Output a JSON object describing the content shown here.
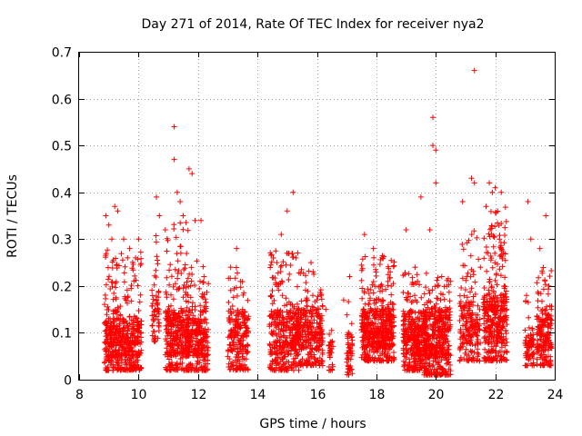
{
  "chart_data": {
    "type": "scatter",
    "title": "Day 271 of 2014, Rate Of TEC Index for receiver nya2",
    "xlabel": "GPS time / hours",
    "ylabel": "ROTI / TECUs",
    "xlim": [
      8,
      24
    ],
    "ylim": [
      0,
      0.7
    ],
    "xticks": [
      8,
      10,
      12,
      14,
      16,
      18,
      20,
      22,
      24
    ],
    "yticks": [
      0,
      0.1,
      0.2,
      0.3,
      0.4,
      0.5,
      0.6,
      0.7
    ],
    "ytick_labels": [
      "0",
      "0.1",
      "0.2",
      "0.3",
      "0.4",
      "0.5",
      "0.6",
      "0.7"
    ],
    "grid": true,
    "marker": "+",
    "color": "#ff0000",
    "series": [
      {
        "name": "ROTI",
        "points": [
          [
            8.9,
            0.35
          ],
          [
            9.0,
            0.33
          ],
          [
            9.1,
            0.3
          ],
          [
            9.2,
            0.37
          ],
          [
            9.3,
            0.36
          ],
          [
            9.5,
            0.3
          ],
          [
            9.7,
            0.28
          ],
          [
            9.9,
            0.26
          ],
          [
            10.0,
            0.3
          ],
          [
            10.6,
            0.39
          ],
          [
            10.7,
            0.35
          ],
          [
            10.9,
            0.32
          ],
          [
            11.2,
            0.54
          ],
          [
            11.2,
            0.47
          ],
          [
            11.3,
            0.4
          ],
          [
            11.4,
            0.38
          ],
          [
            11.5,
            0.35
          ],
          [
            11.7,
            0.45
          ],
          [
            11.8,
            0.44
          ],
          [
            11.9,
            0.34
          ],
          [
            12.1,
            0.34
          ],
          [
            12.2,
            0.22
          ],
          [
            13.1,
            0.24
          ],
          [
            13.3,
            0.28
          ],
          [
            13.5,
            0.15
          ],
          [
            14.5,
            0.19
          ],
          [
            14.8,
            0.31
          ],
          [
            15.0,
            0.36
          ],
          [
            15.2,
            0.4
          ],
          [
            15.3,
            0.26
          ],
          [
            15.8,
            0.25
          ],
          [
            16.0,
            0.17
          ],
          [
            16.3,
            0.15
          ],
          [
            16.9,
            0.17
          ],
          [
            17.1,
            0.22
          ],
          [
            17.6,
            0.31
          ],
          [
            17.9,
            0.28
          ],
          [
            18.2,
            0.26
          ],
          [
            18.5,
            0.2
          ],
          [
            19.0,
            0.32
          ],
          [
            19.3,
            0.24
          ],
          [
            19.5,
            0.39
          ],
          [
            19.8,
            0.32
          ],
          [
            19.9,
            0.56
          ],
          [
            19.9,
            0.5
          ],
          [
            20.0,
            0.49
          ],
          [
            20.0,
            0.42
          ],
          [
            20.2,
            0.22
          ],
          [
            20.5,
            0.21
          ],
          [
            20.9,
            0.38
          ],
          [
            21.2,
            0.43
          ],
          [
            21.3,
            0.42
          ],
          [
            21.3,
            0.66
          ],
          [
            21.5,
            0.24
          ],
          [
            21.8,
            0.42
          ],
          [
            21.9,
            0.4
          ],
          [
            22.0,
            0.41
          ],
          [
            22.2,
            0.4
          ],
          [
            22.3,
            0.2
          ],
          [
            23.1,
            0.38
          ],
          [
            23.2,
            0.3
          ],
          [
            23.5,
            0.28
          ],
          [
            23.7,
            0.35
          ],
          [
            23.8,
            0.2
          ]
        ],
        "bursts": [
          {
            "x0": 8.85,
            "x1": 10.1,
            "ymin": 0.02,
            "ymax": 0.28,
            "count": 520,
            "bias": 0.09
          },
          {
            "x0": 10.45,
            "x1": 10.7,
            "ymin": 0.08,
            "ymax": 0.32,
            "count": 60,
            "bias": 0.15
          },
          {
            "x0": 10.9,
            "x1": 11.7,
            "ymin": 0.02,
            "ymax": 0.34,
            "count": 340,
            "bias": 0.1
          },
          {
            "x0": 11.6,
            "x1": 12.35,
            "ymin": 0.02,
            "ymax": 0.26,
            "count": 300,
            "bias": 0.09
          },
          {
            "x0": 13.0,
            "x1": 13.7,
            "ymin": 0.02,
            "ymax": 0.24,
            "count": 220,
            "bias": 0.1
          },
          {
            "x0": 14.4,
            "x1": 15.4,
            "ymin": 0.02,
            "ymax": 0.28,
            "count": 360,
            "bias": 0.1
          },
          {
            "x0": 15.3,
            "x1": 16.2,
            "ymin": 0.03,
            "ymax": 0.24,
            "count": 300,
            "bias": 0.11
          },
          {
            "x0": 16.4,
            "x1": 16.55,
            "ymin": 0.02,
            "ymax": 0.13,
            "count": 30,
            "bias": 0.06
          },
          {
            "x0": 17.0,
            "x1": 17.2,
            "ymin": 0.01,
            "ymax": 0.17,
            "count": 50,
            "bias": 0.07
          },
          {
            "x0": 17.5,
            "x1": 18.6,
            "ymin": 0.04,
            "ymax": 0.27,
            "count": 520,
            "bias": 0.11
          },
          {
            "x0": 18.9,
            "x1": 19.7,
            "ymin": 0.02,
            "ymax": 0.23,
            "count": 380,
            "bias": 0.1
          },
          {
            "x0": 19.6,
            "x1": 20.5,
            "ymin": 0.01,
            "ymax": 0.22,
            "count": 420,
            "bias": 0.1
          },
          {
            "x0": 20.8,
            "x1": 21.5,
            "ymin": 0.04,
            "ymax": 0.33,
            "count": 200,
            "bias": 0.12
          },
          {
            "x0": 21.6,
            "x1": 22.4,
            "ymin": 0.04,
            "ymax": 0.37,
            "count": 380,
            "bias": 0.13
          },
          {
            "x0": 23.0,
            "x1": 23.3,
            "ymin": 0.03,
            "ymax": 0.21,
            "count": 80,
            "bias": 0.08
          },
          {
            "x0": 23.4,
            "x1": 23.9,
            "ymin": 0.03,
            "ymax": 0.24,
            "count": 200,
            "bias": 0.1
          }
        ]
      }
    ]
  }
}
